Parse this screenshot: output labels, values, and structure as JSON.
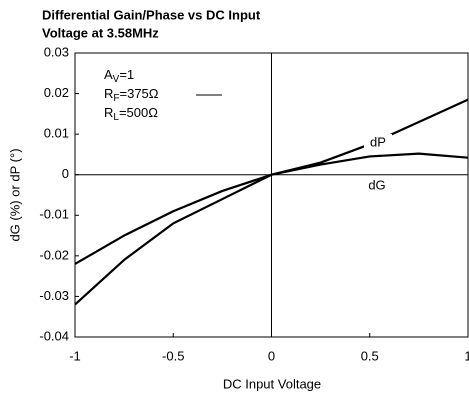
{
  "chart_data": {
    "type": "line",
    "title_lines": [
      "Differential Gain/Phase vs DC Input",
      "Voltage at 3.58MHz"
    ],
    "x_label": "DC Input Voltage",
    "y_label": "dG (%) or dP (°)",
    "x": [
      -1,
      -0.75,
      -0.5,
      -0.25,
      0,
      0.25,
      0.5,
      0.75,
      1
    ],
    "series": [
      {
        "name": "dP",
        "color": "#000000",
        "values": [
          -0.022,
          -0.015,
          -0.009,
          -0.004,
          0,
          0.003,
          0.0075,
          0.013,
          0.0185
        ]
      },
      {
        "name": "dG",
        "color": "#000000",
        "values": [
          -0.032,
          -0.021,
          -0.012,
          -0.006,
          0,
          0.0025,
          0.0045,
          0.0052,
          0.0042
        ]
      }
    ],
    "annotations": [
      [
        "A",
        "V",
        "=1"
      ],
      [
        "R",
        "F",
        "=375Ω"
      ],
      [
        "R",
        "L",
        "=500Ω"
      ]
    ],
    "xlim": [
      -1,
      1
    ],
    "xticks": [
      -1,
      -0.5,
      0,
      0.5,
      1
    ],
    "ylim": [
      -0.04,
      0.03
    ],
    "yticks": [
      0.03,
      0.02,
      0.01,
      0,
      -0.01,
      -0.02,
      -0.03,
      -0.04
    ],
    "grid": false
  }
}
